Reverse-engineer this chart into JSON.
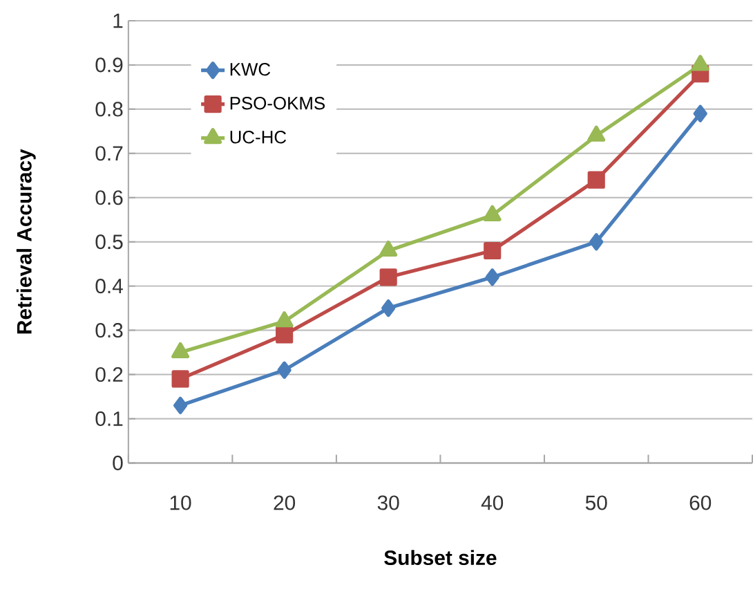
{
  "chart_data": {
    "type": "line",
    "xlabel": "Subset size",
    "ylabel": "Retrieval Accuracy",
    "categories": [
      "10",
      "20",
      "30",
      "40",
      "50",
      "60"
    ],
    "series": [
      {
        "name": "KWC",
        "color": "#4a7ebb",
        "marker": "diamond",
        "values": [
          0.13,
          0.21,
          0.35,
          0.42,
          0.5,
          0.79
        ]
      },
      {
        "name": "PSO-OKMS",
        "color": "#be4b48",
        "marker": "square",
        "values": [
          0.19,
          0.29,
          0.42,
          0.48,
          0.64,
          0.88
        ]
      },
      {
        "name": "UC-HC",
        "color": "#98b954",
        "marker": "triangle",
        "values": [
          0.25,
          0.32,
          0.48,
          0.56,
          0.74,
          0.9
        ]
      }
    ],
    "ylim": [
      0,
      1
    ],
    "yticks": [
      0,
      0.1,
      0.2,
      0.3,
      0.4,
      0.5,
      0.6,
      0.7,
      0.8,
      0.9,
      1
    ],
    "grid": "y",
    "legend": "top left",
    "line_style": "solid"
  }
}
